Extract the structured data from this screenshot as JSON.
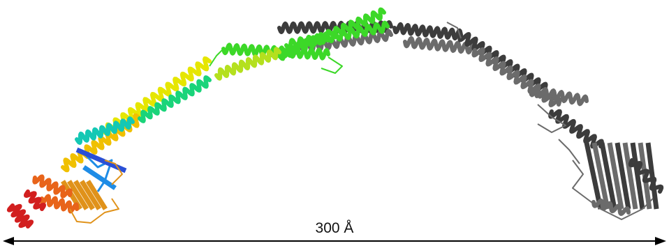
{
  "figure": {
    "scale_label": "300 Å"
  },
  "colors": {
    "background": "#ffffff",
    "gray_chain": "#6b6b6b",
    "gray_chain_dark": "#3c3c3c",
    "rainbow": [
      "#d21f1f",
      "#e8641a",
      "#e0921a",
      "#f0c000",
      "#e6e600",
      "#b4e01e",
      "#3cd828",
      "#1ad47a",
      "#14c8b4",
      "#1e8ce6",
      "#2a4fd6"
    ],
    "arrow": "#000000"
  }
}
